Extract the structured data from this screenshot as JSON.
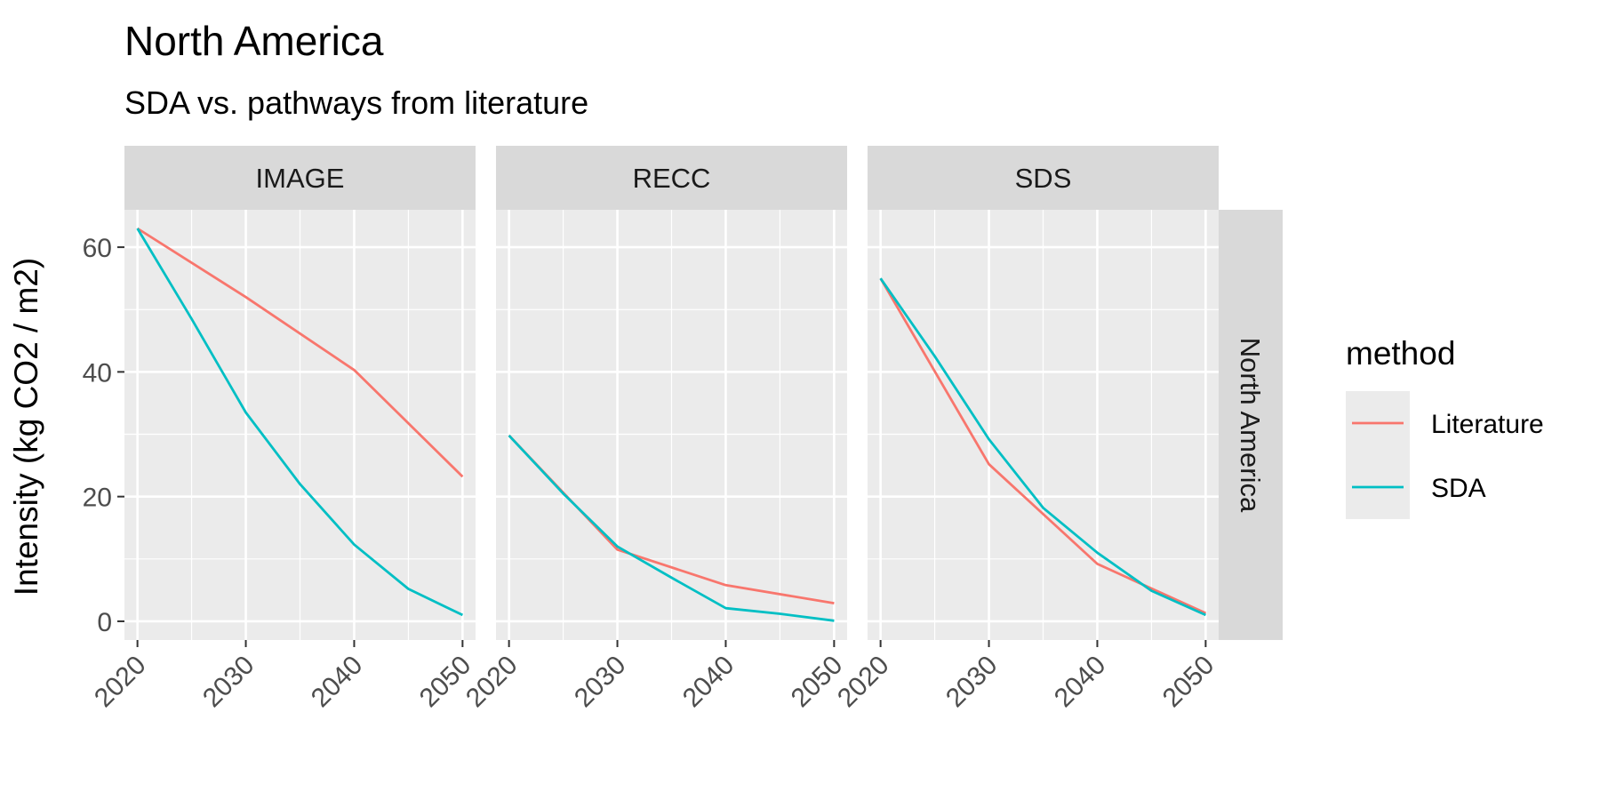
{
  "chart_data": {
    "type": "line",
    "title": "North America",
    "subtitle": "SDA vs. pathways from literature",
    "ylabel": "Intensity (kg CO2 / m2)",
    "xlabel": "",
    "row_strip": "North America",
    "x_ticks": [
      2020,
      2030,
      2040,
      2050
    ],
    "y_ticks": [
      0,
      20,
      40,
      60
    ],
    "xlim": [
      2018.8,
      2051.2
    ],
    "ylim": [
      -3,
      66
    ],
    "grid": true,
    "legend": {
      "title": "method",
      "position": "right",
      "entries": [
        {
          "name": "Literature",
          "color": "#F8766D"
        },
        {
          "name": "SDA",
          "color": "#00BFC4"
        }
      ]
    },
    "panels": [
      {
        "label": "IMAGE",
        "series": [
          {
            "name": "Literature",
            "color": "#F8766D",
            "x": [
              2020,
              2030,
              2040,
              2050
            ],
            "y": [
              63,
              52,
              40.3,
              23.2
            ]
          },
          {
            "name": "SDA",
            "color": "#00BFC4",
            "x": [
              2020,
              2025,
              2030,
              2035,
              2040,
              2045,
              2050
            ],
            "y": [
              63,
              48.5,
              33.5,
              22,
              12.3,
              5.2,
              1
            ]
          }
        ]
      },
      {
        "label": "RECC",
        "series": [
          {
            "name": "Literature",
            "color": "#F8766D",
            "x": [
              2020,
              2030,
              2040,
              2050
            ],
            "y": [
              29.8,
              11.5,
              5.8,
              2.9
            ]
          },
          {
            "name": "SDA",
            "color": "#00BFC4",
            "x": [
              2020,
              2025,
              2030,
              2035,
              2040,
              2045,
              2050
            ],
            "y": [
              29.8,
              20.5,
              12,
              7,
              2.1,
              1.2,
              0.1
            ]
          }
        ]
      },
      {
        "label": "SDS",
        "series": [
          {
            "name": "Literature",
            "color": "#F8766D",
            "x": [
              2020,
              2030,
              2040,
              2050
            ],
            "y": [
              55,
              25.2,
              9.2,
              1.3
            ]
          },
          {
            "name": "SDA",
            "color": "#00BFC4",
            "x": [
              2020,
              2025,
              2030,
              2035,
              2040,
              2045,
              2050
            ],
            "y": [
              55,
              42.5,
              29.2,
              18.2,
              11,
              4.9,
              1
            ]
          }
        ]
      }
    ]
  }
}
